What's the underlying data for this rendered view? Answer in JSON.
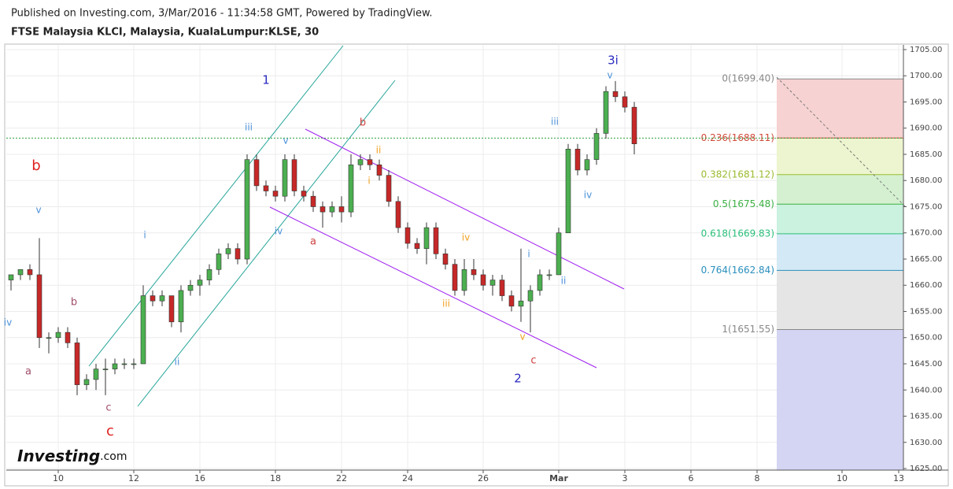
{
  "header": {
    "published": "Published on Investing.com, 3/Mar/2016 - 11:34:58 GMT, Powered by TradingView."
  },
  "logo": {
    "name": "Investing",
    "suffix": ".com"
  },
  "chart_data": {
    "type": "candlestick",
    "title": "FTSE Malaysia KLCI, Malaysia, KualaLumpur:KLSE, 30",
    "categories": [
      null,
      null,
      null,
      null,
      null,
      "10",
      null,
      null,
      null,
      null,
      null,
      null,
      null,
      "12",
      null,
      null,
      null,
      null,
      null,
      null,
      "16",
      null,
      null,
      null,
      null,
      null,
      null,
      null,
      "18",
      null,
      null,
      null,
      null,
      null,
      null,
      "22",
      null,
      null,
      null,
      null,
      null,
      null,
      "24",
      null,
      null,
      null,
      null,
      null,
      null,
      null,
      "26",
      null,
      null,
      null,
      null,
      null,
      null,
      null,
      "Mar",
      null,
      null,
      null,
      null,
      null,
      null,
      "3",
      null,
      null,
      null,
      null,
      null,
      null,
      "6",
      null,
      null,
      null,
      null,
      null,
      null,
      "8",
      null,
      null,
      null,
      null,
      null,
      null,
      null,
      null,
      "10",
      null,
      null,
      null,
      null,
      null,
      "13"
    ],
    "open": [
      1661,
      1662,
      1663,
      1662,
      1650,
      1650,
      1651,
      1649,
      1641,
      1642,
      1644,
      1644,
      1645,
      1645,
      1645,
      1658,
      1657,
      1658,
      1653,
      1659,
      1660,
      1661,
      1663,
      1666,
      1667,
      1665,
      1684,
      1679,
      1678,
      1677,
      1684,
      1678,
      1677,
      1675,
      1674,
      1675,
      1674,
      1683,
      1684,
      1683,
      1681,
      1676,
      1671,
      1668,
      1667,
      1671,
      1666,
      1664,
      1659,
      1663,
      1662,
      1660,
      1661,
      1658,
      1656,
      1657,
      1659,
      1662,
      1662,
      1670,
      1686,
      1682,
      1684,
      1689,
      1697,
      1696,
      1694,
      null,
      null,
      null,
      null,
      null,
      null,
      null,
      null,
      null,
      null,
      null,
      null,
      null,
      null,
      null,
      null,
      null,
      null,
      null,
      null,
      null,
      null,
      null,
      null,
      null,
      null,
      null,
      null
    ],
    "high": [
      1662,
      1663,
      1664,
      1669,
      1651,
      1652,
      1652,
      1650,
      1643,
      1645,
      1646,
      1646,
      1646,
      1646,
      1660,
      1659,
      1659,
      1658,
      1660,
      1661,
      1662,
      1664,
      1667,
      1668,
      1668,
      1685,
      1685,
      1680,
      1679,
      1685,
      1685,
      1679,
      1678,
      1676,
      1676,
      1677,
      1685,
      1685,
      1685,
      1684,
      1682,
      1677,
      1672,
      1669,
      1672,
      1672,
      1667,
      1665,
      1665,
      1665,
      1663,
      1662,
      1662,
      1659,
      1667,
      1660,
      1663,
      1663,
      1671,
      1687,
      1687,
      1685,
      1690,
      1698,
      1699,
      1697,
      1695,
      null,
      null,
      null,
      null,
      null,
      null,
      null,
      null,
      null,
      null,
      null,
      null,
      null,
      null,
      null,
      null,
      null,
      null,
      null,
      null,
      null,
      null,
      null,
      null,
      null,
      null,
      null,
      null
    ],
    "low": [
      1659,
      1661,
      1661,
      1648,
      1647,
      1649,
      1648,
      1639,
      1640,
      1640,
      1639,
      1643,
      1644,
      1644,
      1645,
      1656,
      1656,
      1652,
      1651,
      1658,
      1658,
      1660,
      1662,
      1665,
      1664,
      1664,
      1678,
      1677,
      1676,
      1676,
      1677,
      1676,
      1674,
      1671,
      1673,
      1672,
      1673,
      1682,
      1682,
      1680,
      1675,
      1670,
      1667,
      1666,
      1664,
      1665,
      1663,
      1658,
      1658,
      1661,
      1659,
      1658,
      1657,
      1655,
      1653,
      1651,
      1658,
      1661,
      1662,
      1670,
      1681,
      1681,
      1683,
      1688,
      1695,
      1693,
      1685,
      null,
      null,
      null,
      null,
      null,
      null,
      null,
      null,
      null,
      null,
      null,
      null,
      null,
      null,
      null,
      null,
      null,
      null,
      null,
      null,
      null,
      null,
      null,
      null,
      null,
      null,
      null,
      null
    ],
    "close": [
      1662,
      1663,
      1662,
      1650,
      1650,
      1651,
      1649,
      1641,
      1642,
      1644,
      1644,
      1645,
      1645,
      1645,
      1658,
      1657,
      1658,
      1653,
      1659,
      1660,
      1661,
      1663,
      1666,
      1667,
      1665,
      1684,
      1679,
      1678,
      1677,
      1684,
      1678,
      1677,
      1675,
      1674,
      1675,
      1674,
      1683,
      1684,
      1683,
      1681,
      1676,
      1671,
      1668,
      1667,
      1671,
      1666,
      1664,
      1659,
      1663,
      1662,
      1660,
      1661,
      1658,
      1656,
      1657,
      1659,
      1662,
      1662,
      1670,
      1686,
      1682,
      1684,
      1689,
      1697,
      1696,
      1694,
      1687,
      null,
      null,
      null,
      null,
      null,
      null,
      null,
      null,
      null,
      null,
      null,
      null,
      null,
      null,
      null,
      null,
      null,
      null,
      null,
      null,
      null,
      null,
      null,
      null,
      null,
      null,
      null,
      null
    ],
    "up_color": "#4caf50",
    "down_color": "#c62828",
    "ylim": [
      1624.7,
      1705.9
    ],
    "yticks": [
      {
        "value": 1625,
        "label": "1625.00"
      },
      {
        "value": 1630,
        "label": "1630.00"
      },
      {
        "value": 1635,
        "label": "1635.00"
      },
      {
        "value": 1640,
        "label": "1640.00"
      },
      {
        "value": 1645,
        "label": "1645.00"
      },
      {
        "value": 1650,
        "label": "1650.00"
      },
      {
        "value": 1655,
        "label": "1655.00"
      },
      {
        "value": 1660,
        "label": "1660.00"
      },
      {
        "value": 1665,
        "label": "1665.00"
      },
      {
        "value": 1670,
        "label": "1670.00"
      },
      {
        "value": 1675,
        "label": "1675.00"
      },
      {
        "value": 1680,
        "label": "1680.00"
      },
      {
        "value": 1685,
        "label": "1685.00"
      },
      {
        "value": 1690,
        "label": "1690.00"
      },
      {
        "value": 1695,
        "label": "1695.00"
      },
      {
        "value": 1700,
        "label": "1700.00"
      },
      {
        "value": 1705,
        "label": "1705.00"
      }
    ],
    "grid": true,
    "last_price_line": {
      "value": 1688.1,
      "color": "#2e9e3e"
    },
    "fib_levels": [
      {
        "value": 1699.4,
        "label": "0(1699.40)",
        "color": "#888888",
        "band_color": "#f6d2d2"
      },
      {
        "value": 1688.11,
        "label": "0.236(1688.11)",
        "color": "#d04a3a",
        "band_color": "#ecf5cf"
      },
      {
        "value": 1681.12,
        "label": "0.382(1681.12)",
        "color": "#9bbb30",
        "band_color": "#d4f0d0"
      },
      {
        "value": 1675.48,
        "label": "0.5(1675.48)",
        "color": "#3cb043",
        "band_color": "#cbf1df"
      },
      {
        "value": 1669.83,
        "label": "0.618(1669.83)",
        "color": "#2bbf7a",
        "band_color": "#d3e9f5"
      },
      {
        "value": 1662.84,
        "label": "0.764(1662.84)",
        "color": "#2a8fbd",
        "band_color": "#e5e5e5"
      },
      {
        "value": 1651.55,
        "label": "1(1651.55)",
        "color": "#888888",
        "band_color": "#d4d4f3"
      }
    ],
    "annotations": [
      {
        "text": "b",
        "color": "#e02020"
      },
      {
        "text": "c",
        "color": "#e02020"
      },
      {
        "text": "v",
        "color": "#4a90d9"
      },
      {
        "text": "iv",
        "color": "#4a90d9"
      },
      {
        "text": "a",
        "color": "#a0506a"
      },
      {
        "text": "b",
        "color": "#a0506a"
      },
      {
        "text": "c",
        "color": "#a0506a"
      },
      {
        "text": "i",
        "color": "#4a90d9"
      },
      {
        "text": "ii",
        "color": "#4a90d9"
      },
      {
        "text": "1",
        "color": "#2a2ac0"
      },
      {
        "text": "iii",
        "color": "#4a90d9"
      },
      {
        "text": "v",
        "color": "#4a90d9"
      },
      {
        "text": "iv",
        "color": "#4a90d9"
      },
      {
        "text": "a",
        "color": "#d04040"
      },
      {
        "text": "b",
        "color": "#d04040"
      },
      {
        "text": "ii",
        "color": "#f0a020"
      },
      {
        "text": "i",
        "color": "#f0a020"
      },
      {
        "text": "iv",
        "color": "#f0a020"
      },
      {
        "text": "iii",
        "color": "#f0a020"
      },
      {
        "text": "v",
        "color": "#f0a020"
      },
      {
        "text": "c",
        "color": "#d04040"
      },
      {
        "text": "2",
        "color": "#2a2ac0"
      },
      {
        "text": "i",
        "color": "#4a90d9"
      },
      {
        "text": "ii",
        "color": "#4a90d9"
      },
      {
        "text": "iii",
        "color": "#4a90d9"
      },
      {
        "text": "iv",
        "color": "#4a90d9"
      },
      {
        "text": "v",
        "color": "#4a90d9"
      },
      {
        "text": "3i",
        "color": "#2a2ac0"
      }
    ]
  }
}
